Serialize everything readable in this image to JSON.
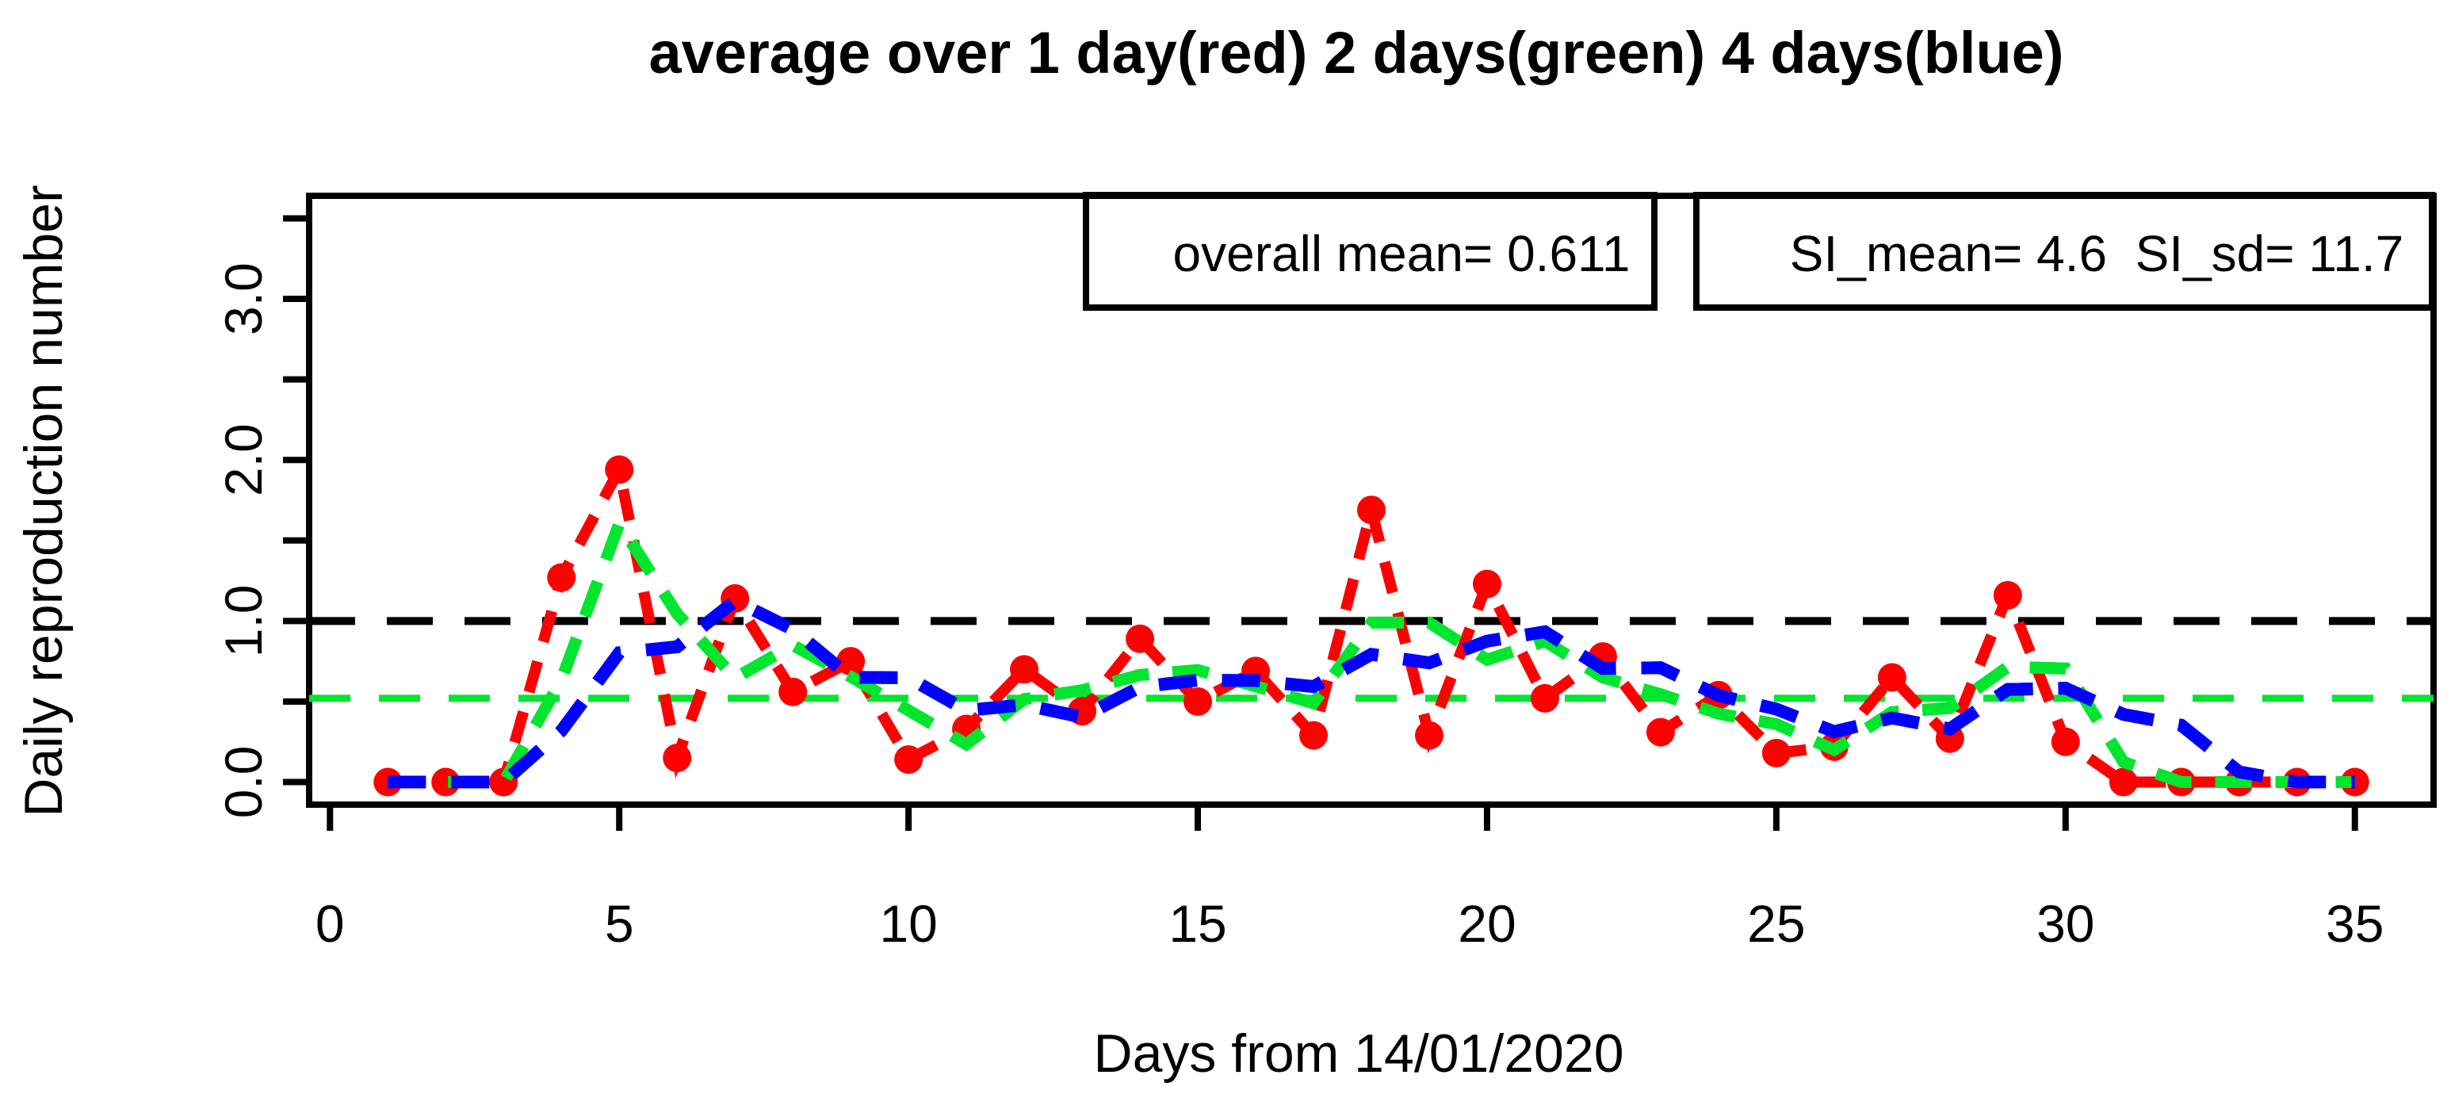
{
  "title": "average over 1 day(red) 2 days(green) 4 days(blue)",
  "annotation_boxes": {
    "overall_mean_label": "overall mean= 0.611",
    "si_label": "SI_mean= 4.6  SI_sd= 11.7"
  },
  "colors": {
    "red": "#ff0000",
    "green": "#00e62e",
    "blue": "#0000ff",
    "black": "#000000",
    "background": "#ffffff"
  },
  "chart_data": {
    "type": "line",
    "title": "average over 1 day(red) 2 days(green) 4 days(blue)",
    "xlabel": "Days from 14/01/2020",
    "ylabel": "Daily reproduction number",
    "xlim": [
      0,
      36
    ],
    "ylim": [
      0,
      3.5
    ],
    "x_ticks": [
      0,
      5,
      10,
      15,
      20,
      25,
      30,
      35
    ],
    "y_ticks": [
      0,
      0.5,
      1,
      1.5,
      2,
      2.5,
      3,
      3.5
    ],
    "y_tick_labels": {
      "0": "0.0",
      "1": "1.0",
      "2": "2.0",
      "3": "3.0"
    },
    "grid": false,
    "legend_position": "annotation boxes top-right",
    "x": [
      1,
      2,
      3,
      4,
      5,
      6,
      7,
      8,
      9,
      10,
      11,
      12,
      13,
      14,
      15,
      16,
      17,
      18,
      19,
      20,
      21,
      22,
      23,
      24,
      25,
      26,
      27,
      28,
      29,
      30,
      31,
      32,
      33,
      34,
      35
    ],
    "series": [
      {
        "name": "1-day average (red points, dashed line)",
        "color": "#ff0000",
        "dash": "40 26",
        "width": 14,
        "points": true,
        "values": [
          0,
          0,
          0,
          1.27,
          1.94,
          0.15,
          1.14,
          0.56,
          0.75,
          0.14,
          0.33,
          0.7,
          0.44,
          0.89,
          0.5,
          0.69,
          0.29,
          1.69,
          0.29,
          1.23,
          0.52,
          0.78,
          0.31,
          0.54,
          0.18,
          0.22,
          0.65,
          0.27,
          1.16,
          0.25,
          0,
          0,
          0,
          0,
          0
        ]
      },
      {
        "name": "2-day average (green dashed line)",
        "color": "#00e62e",
        "dash": "46 30",
        "width": 15,
        "points": false,
        "values": [
          0,
          0,
          0,
          0.635,
          1.605,
          1.045,
          0.645,
          0.85,
          0.655,
          0.445,
          0.235,
          0.515,
          0.57,
          0.665,
          0.695,
          0.595,
          0.49,
          0.99,
          0.99,
          0.76,
          0.875,
          0.65,
          0.545,
          0.425,
          0.36,
          0.2,
          0.435,
          0.46,
          0.715,
          0.705,
          0.125,
          0,
          0,
          0,
          0
        ]
      },
      {
        "name": "4-day average (blue dashed line)",
        "color": "#0000ff",
        "dash": "48 32",
        "width": 16,
        "points": false,
        "values": [
          0,
          0,
          0,
          0.318,
          0.803,
          0.84,
          1.125,
          0.948,
          0.65,
          0.648,
          0.445,
          0.48,
          0.403,
          0.59,
          0.633,
          0.63,
          0.593,
          0.793,
          0.74,
          0.875,
          0.933,
          0.705,
          0.71,
          0.538,
          0.453,
          0.313,
          0.398,
          0.33,
          0.575,
          0.583,
          0.42,
          0.353,
          0.063,
          0,
          0
        ]
      }
    ],
    "hlines": [
      {
        "y": 1.0,
        "color": "#000000",
        "dash": "58 40",
        "width": 10
      },
      {
        "y": 0.52,
        "color": "#00e62e",
        "dash": "52 36",
        "width": 9
      }
    ]
  }
}
